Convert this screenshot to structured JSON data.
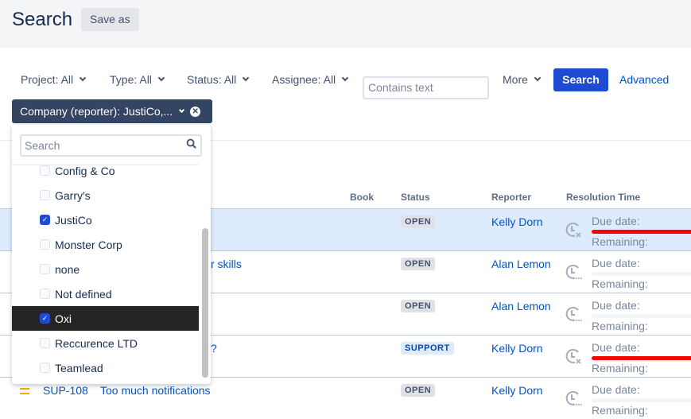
{
  "header": {
    "title": "Search",
    "save_as": "Save as"
  },
  "filters": {
    "project": "Project: All",
    "type": "Type: All",
    "status": "Status: All",
    "assignee": "Assignee: All",
    "contains_placeholder": "Contains text",
    "more": "More",
    "search": "Search",
    "advanced": "Advanced",
    "company_chip": "Company (reporter): JustiCo,..."
  },
  "dropdown": {
    "search_placeholder": "Search",
    "highlighted": "Oxi",
    "items": [
      {
        "label": "Config & Co",
        "checked": false
      },
      {
        "label": "Garry's",
        "checked": false
      },
      {
        "label": "JustiCo",
        "checked": true
      },
      {
        "label": "Monster Corp",
        "checked": false
      },
      {
        "label": "none",
        "checked": false
      },
      {
        "label": "Not defined",
        "checked": false
      },
      {
        "label": "Oxi",
        "checked": true
      },
      {
        "label": "Reccurence LTD",
        "checked": false
      },
      {
        "label": "Teamlead",
        "checked": false
      }
    ]
  },
  "table": {
    "headers": {
      "book": "Book",
      "status": "Status",
      "reporter": "Reporter",
      "resolution": "Resolution Time"
    },
    "due_label": "Due date:",
    "remaining_label": "Remaining:",
    "rows": [
      {
        "key": "",
        "summary": "",
        "status": "OPEN",
        "reporter": "Kelly Dorn",
        "overdue": true
      },
      {
        "key": "",
        "summary": "r skills",
        "status": "OPEN",
        "reporter": "Alan Lemon",
        "overdue": false
      },
      {
        "key": "",
        "summary": "",
        "status": "OPEN",
        "reporter": "Alan Lemon",
        "overdue": false
      },
      {
        "key": "",
        "summary": "?",
        "status": "SUPPORT",
        "reporter": "Kelly Dorn",
        "overdue": true
      },
      {
        "key": "SUP-108",
        "summary": "Too much notifications",
        "status": "OPEN",
        "reporter": "Kelly Dorn",
        "overdue": false
      }
    ]
  },
  "colors": {
    "accent": "#1d4bd1",
    "chip": "#344563",
    "overdue": "#ff0000",
    "selected_row": "#deebff"
  }
}
